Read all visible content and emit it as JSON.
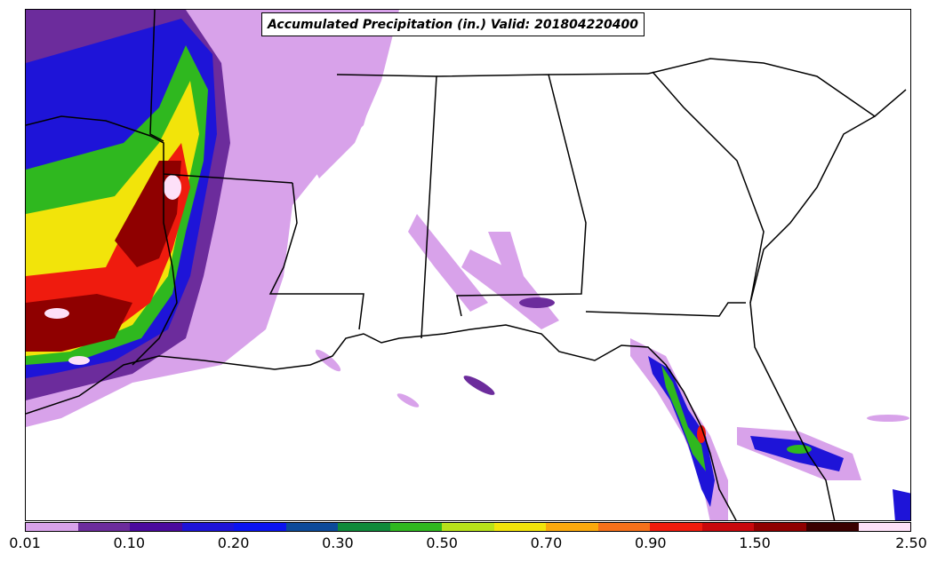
{
  "title": "Accumulated Precipitation (in.) Valid: 201804220400",
  "colorbar": {
    "colors": [
      "#d8a2ea",
      "#6c2c9c",
      "#4b0a9e",
      "#1e14d8",
      "#0b14f0",
      "#0c4a9a",
      "#0f8a3a",
      "#2fb81f",
      "#b8e21a",
      "#f2e40a",
      "#fba90c",
      "#f5701a",
      "#ef1b0e",
      "#c8080c",
      "#8f0000",
      "#3a0000",
      "#fde0f8"
    ],
    "ticks": [
      "0.01",
      "0.10",
      "0.20",
      "0.30",
      "0.50",
      "0.70",
      "0.90",
      "1.50",
      "2.50"
    ]
  },
  "colors": {
    "land": "#ffffff",
    "border": "#000000"
  }
}
